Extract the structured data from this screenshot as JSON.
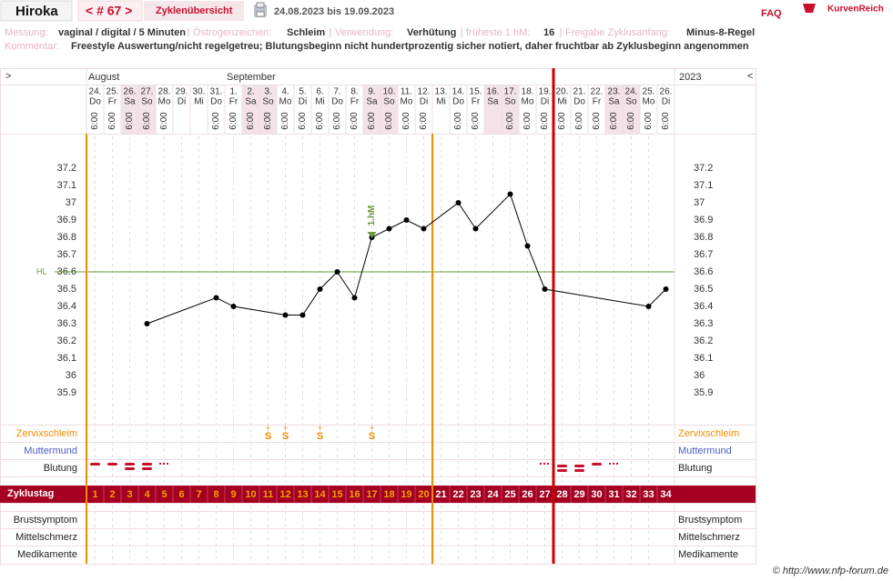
{
  "header": {
    "name": "Hiroka",
    "cycle": "< # 67 >",
    "tab": "Zyklenübersicht",
    "range": "24.08.2023 bis 19.09.2023",
    "faq": "FAQ",
    "logo": "KurvenReich"
  },
  "info": [
    {
      "label": "Messung:",
      "value": "vaginal / digital / 5 Minuten"
    },
    {
      "label": "Östrogenzeichen:",
      "value": "Schleim"
    },
    {
      "label": "Verwendung:",
      "value": "Verhütung"
    },
    {
      "label": "früheste 1.hM:",
      "value": "16"
    },
    {
      "label": "Freigabe Zyklusanfang:",
      "value": "Minus-8-Regel"
    }
  ],
  "comment": {
    "label": "Kommentar:",
    "value": "Freestyle Auswertung/nicht regelgetreu; Blutungsbeginn nicht hundertprozentig sicher notiert, daher fruchtbar ab Zyklusbeginn angenommen"
  },
  "footer": "© http://www.nfp-forum.de",
  "chart_data": {
    "type": "line",
    "prev": ">",
    "next": "<",
    "year": "2023",
    "months": [
      {
        "label": "August",
        "day": 1
      },
      {
        "label": "September",
        "day": 9
      }
    ],
    "dates": [
      "24.",
      "25.",
      "26.",
      "27.",
      "28.",
      "29.",
      "30.",
      "31.",
      "1.",
      "2.",
      "3.",
      "4.",
      "5.",
      "6.",
      "7.",
      "8.",
      "9.",
      "10.",
      "11.",
      "12.",
      "13.",
      "14.",
      "15.",
      "16.",
      "17.",
      "18.",
      "19.",
      "20.",
      "21.",
      "22.",
      "23.",
      "24.",
      "25.",
      "26."
    ],
    "weekdays": [
      "Do",
      "Fr",
      "Sa",
      "So",
      "Mo",
      "Di",
      "Mi",
      "Do",
      "Fr",
      "Sa",
      "So",
      "Mo",
      "Di",
      "Mi",
      "Do",
      "Fr",
      "Sa",
      "So",
      "Mo",
      "Di",
      "Mi",
      "Do",
      "Fr",
      "Sa",
      "So",
      "Mo",
      "Di",
      "Mi",
      "Do",
      "Fr",
      "Sa",
      "So",
      "Mo",
      "Di"
    ],
    "times": [
      "6:00",
      "6:00",
      "6:00",
      "6:00",
      "6:00",
      null,
      null,
      "6:00",
      "6:00",
      "6:00",
      "6:00",
      "6:00",
      "6:00",
      "6:00",
      "6:00",
      "6:00",
      "6:00",
      "6:00",
      "6:00",
      "6:00",
      null,
      "6:00",
      "6:00",
      null,
      "6:00",
      "6:00",
      "6:00",
      "6:00",
      "6:00",
      "6:00",
      "6:00",
      "6:00",
      "6:00",
      "6:00"
    ],
    "shaded_days": [
      3,
      4,
      10,
      11,
      17,
      18,
      24,
      25,
      31,
      32
    ],
    "cycle_days": [
      1,
      2,
      3,
      4,
      5,
      6,
      7,
      8,
      9,
      10,
      11,
      12,
      13,
      14,
      15,
      16,
      17,
      18,
      19,
      20,
      21,
      22,
      23,
      24,
      25,
      26,
      27,
      28,
      29,
      30,
      31,
      32,
      33,
      34
    ],
    "row_labels": [
      "Zervixschleim",
      "Muttermund",
      "Blutung",
      "Zyklustag",
      "Brustsymptom",
      "Mittelschmerz",
      "Medikamente"
    ],
    "x": [
      4,
      8,
      9,
      12,
      13,
      14,
      15,
      16,
      17,
      18,
      19,
      20,
      22,
      23,
      25,
      26,
      27,
      33,
      34
    ],
    "series": [
      {
        "color": "#000000",
        "values": [
          36.3,
          36.45,
          36.4,
          36.35,
          36.35,
          36.5,
          36.6,
          36.45,
          36.8,
          36.85,
          36.9,
          36.85,
          37.0,
          36.85,
          37.05,
          36.75,
          36.5,
          36.4,
          36.5
        ]
      }
    ],
    "ylim": [
      35.8,
      37.3
    ],
    "yticks": [
      37.2,
      37.1,
      37,
      36.9,
      36.8,
      36.7,
      36.6,
      36.5,
      36.4,
      36.3,
      36.2,
      36.1,
      36,
      35.9
    ],
    "hl": {
      "label": "HL",
      "value": 36.6,
      "color": "#6a9a3a"
    },
    "first_hm": {
      "label": "1.hM",
      "day": 17,
      "value": 36.8
    },
    "mucus": [
      {
        "day": 11,
        "top": "+",
        "symbol": "S"
      },
      {
        "day": 12,
        "top": "+",
        "symbol": "S"
      },
      {
        "day": 14,
        "top": "+",
        "symbol": "S"
      },
      {
        "day": 17,
        "top": "+",
        "symbol": "S"
      }
    ],
    "phase_lines": [
      {
        "day": 1,
        "color": "#f08c00"
      },
      {
        "day": 21,
        "color": "#f08c00"
      },
      {
        "day": 28,
        "color": "#cc0000"
      }
    ]
  }
}
